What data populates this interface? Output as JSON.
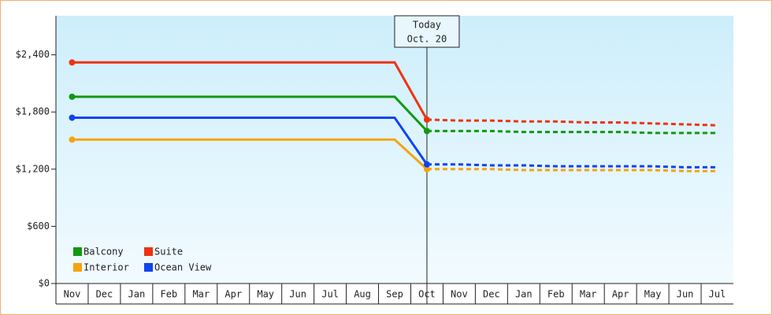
{
  "chart_data": {
    "type": "line",
    "annotation": {
      "title": "Today",
      "date": "Oct. 20"
    },
    "categories": [
      "Nov",
      "Dec",
      "Jan",
      "Feb",
      "Mar",
      "Apr",
      "May",
      "Jun",
      "Jul",
      "Aug",
      "Sep",
      "Oct",
      "Nov",
      "Dec",
      "Jan",
      "Feb",
      "Mar",
      "Apr",
      "May",
      "Jun",
      "Jul"
    ],
    "ylim": [
      0,
      2810
    ],
    "yticks": [
      {
        "value": 0,
        "label": "$0"
      },
      {
        "value": 600,
        "label": "$600"
      },
      {
        "value": 1200,
        "label": "$1,200"
      },
      {
        "value": 1800,
        "label": "$1,800"
      },
      {
        "value": 2400,
        "label": "$2,400"
      }
    ],
    "legend": "bottom-left",
    "series": [
      {
        "name": "Balcony",
        "color": "#119911",
        "values": [
          1960,
          1960,
          1960,
          1960,
          1960,
          1960,
          1960,
          1960,
          1960,
          1960,
          1960,
          1600,
          null,
          null,
          null,
          null,
          null,
          null,
          null,
          null,
          null
        ],
        "forecast": [
          null,
          null,
          null,
          null,
          null,
          null,
          null,
          null,
          null,
          null,
          null,
          1600,
          1600,
          1600,
          1590,
          1590,
          1590,
          1590,
          1580,
          1580,
          1580
        ]
      },
      {
        "name": "Suite",
        "color": "#ee3311",
        "values": [
          2320,
          2320,
          2320,
          2320,
          2320,
          2320,
          2320,
          2320,
          2320,
          2320,
          2320,
          1720,
          null,
          null,
          null,
          null,
          null,
          null,
          null,
          null,
          null
        ],
        "forecast": [
          null,
          null,
          null,
          null,
          null,
          null,
          null,
          null,
          null,
          null,
          null,
          1720,
          1710,
          1710,
          1700,
          1700,
          1690,
          1690,
          1680,
          1670,
          1660
        ]
      },
      {
        "name": "Interior",
        "color": "#f5a311",
        "values": [
          1510,
          1510,
          1510,
          1510,
          1510,
          1510,
          1510,
          1510,
          1510,
          1510,
          1510,
          1200,
          null,
          null,
          null,
          null,
          null,
          null,
          null,
          null,
          null
        ],
        "forecast": [
          null,
          null,
          null,
          null,
          null,
          null,
          null,
          null,
          null,
          null,
          null,
          1200,
          1200,
          1200,
          1190,
          1190,
          1190,
          1190,
          1190,
          1180,
          1180
        ]
      },
      {
        "name": "Ocean View",
        "color": "#1144ee",
        "values": [
          1740,
          1740,
          1740,
          1740,
          1740,
          1740,
          1740,
          1740,
          1740,
          1740,
          1740,
          1250,
          null,
          null,
          null,
          null,
          null,
          null,
          null,
          null,
          null
        ],
        "forecast": [
          null,
          null,
          null,
          null,
          null,
          null,
          null,
          null,
          null,
          null,
          null,
          1250,
          1250,
          1240,
          1240,
          1230,
          1230,
          1230,
          1230,
          1220,
          1220
        ]
      }
    ]
  }
}
